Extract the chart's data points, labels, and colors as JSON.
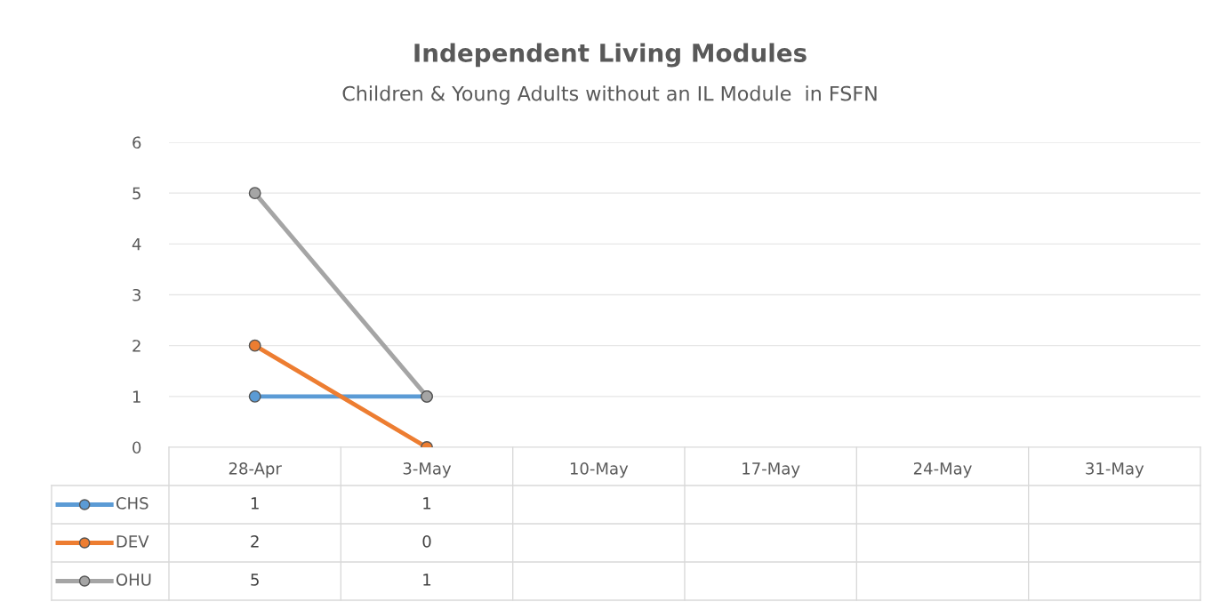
{
  "chart_data": {
    "type": "line",
    "title": "Independent Living Modules",
    "subtitle": "Children & Young Adults without an IL Module  in FSFN",
    "categories": [
      "28-Apr",
      "3-May",
      "10-May",
      "17-May",
      "24-May",
      "31-May"
    ],
    "series": [
      {
        "name": "CHS",
        "color": "#5b9bd5",
        "values": [
          1,
          1,
          null,
          null,
          null,
          null
        ]
      },
      {
        "name": "DEV",
        "color": "#ed7d31",
        "values": [
          2,
          0,
          null,
          null,
          null,
          null
        ]
      },
      {
        "name": "OHU",
        "color": "#a5a5a5",
        "values": [
          5,
          1,
          null,
          null,
          null,
          null
        ]
      }
    ],
    "ylim": [
      0,
      6
    ],
    "yticks": [
      0,
      1,
      2,
      3,
      4,
      5,
      6
    ],
    "grid": "y",
    "marker": "circle",
    "line_style": "solid",
    "legend": "bottom",
    "data_labels": true
  }
}
